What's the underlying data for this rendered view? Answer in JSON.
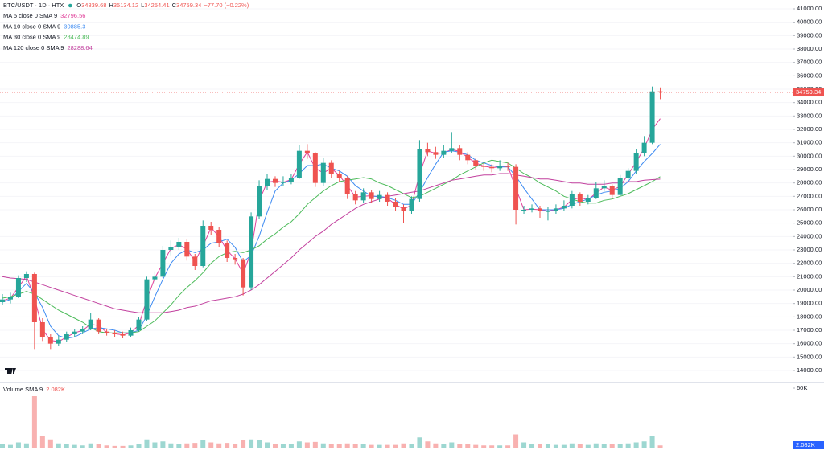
{
  "chart_data": {
    "type": "candlestick",
    "symbol": "BTC/USDT · 1D · HTX",
    "ohlc_prefixes": [
      "O",
      "H",
      "L",
      "C"
    ],
    "change": "−77.70 (−0.22%)",
    "up_color": "#26a69a",
    "down_color": "#ef5350",
    "grid": true,
    "ylim": [
      13280,
      41660
    ],
    "yticks": [
      {
        "value": 14000,
        "label": "14000.00"
      },
      {
        "value": 15000,
        "label": "15000.00"
      },
      {
        "value": 16000,
        "label": "16000.00"
      },
      {
        "value": 17000,
        "label": "17000.00"
      },
      {
        "value": 18000,
        "label": "18000.00"
      },
      {
        "value": 19000,
        "label": "19000.00"
      },
      {
        "value": 20000,
        "label": "20000.00"
      },
      {
        "value": 21000,
        "label": "21000.00"
      },
      {
        "value": 22000,
        "label": "22000.00"
      },
      {
        "value": 23000,
        "label": "23000.00"
      },
      {
        "value": 24000,
        "label": "24000.00"
      },
      {
        "value": 25000,
        "label": "25000.00"
      },
      {
        "value": 26000,
        "label": "26000.00"
      },
      {
        "value": 27000,
        "label": "27000.00"
      },
      {
        "value": 28000,
        "label": "28000.00"
      },
      {
        "value": 29000,
        "label": "29000.00"
      },
      {
        "value": 30000,
        "label": "30000.00"
      },
      {
        "value": 31000,
        "label": "31000.00"
      },
      {
        "value": 32000,
        "label": "32000.00"
      },
      {
        "value": 33000,
        "label": "33000.00"
      },
      {
        "value": 34000,
        "label": "34000.00"
      },
      {
        "value": 35000,
        "label": "35000.00"
      },
      {
        "value": 36000,
        "label": "36000.00"
      },
      {
        "value": 37000,
        "label": "37000.00"
      },
      {
        "value": 38000,
        "label": "38000.00"
      },
      {
        "value": 39000,
        "label": "39000.00"
      },
      {
        "value": 40000,
        "label": "40000.00"
      },
      {
        "value": 41000,
        "label": "41000.00"
      }
    ],
    "ohlc": [
      [
        19100,
        19700,
        18900,
        19300
      ],
      [
        19300,
        19800,
        19000,
        19500
      ],
      [
        19500,
        21100,
        19400,
        20900
      ],
      [
        20900,
        21400,
        20600,
        21200
      ],
      [
        21200,
        21300,
        15600,
        17600
      ],
      [
        17600,
        17900,
        16200,
        16500
      ],
      [
        16500,
        16700,
        15600,
        16000
      ],
      [
        16000,
        16600,
        15800,
        16300
      ],
      [
        16300,
        16900,
        16100,
        16700
      ],
      [
        16700,
        17100,
        16500,
        16900
      ],
      [
        16900,
        17300,
        16700,
        17100
      ],
      [
        17100,
        18300,
        17000,
        17800
      ],
      [
        17800,
        17900,
        16700,
        16900
      ],
      [
        16900,
        17100,
        16600,
        16800
      ],
      [
        16800,
        17000,
        16500,
        16700
      ],
      [
        16700,
        16900,
        16400,
        16600
      ],
      [
        16600,
        17200,
        16500,
        17000
      ],
      [
        17000,
        18000,
        16900,
        17800
      ],
      [
        17800,
        21000,
        17700,
        20800
      ],
      [
        20800,
        21400,
        20500,
        21000
      ],
      [
        21000,
        23300,
        20900,
        23000
      ],
      [
        23000,
        23700,
        22600,
        23200
      ],
      [
        23200,
        23900,
        23000,
        23600
      ],
      [
        23600,
        23800,
        22200,
        22500
      ],
      [
        22500,
        22700,
        21500,
        21800
      ],
      [
        21800,
        25200,
        21700,
        24800
      ],
      [
        24800,
        25100,
        24100,
        24500
      ],
      [
        24500,
        24700,
        23200,
        23500
      ],
      [
        23500,
        23700,
        22100,
        22400
      ],
      [
        22400,
        22700,
        21900,
        22300
      ],
      [
        22300,
        22400,
        19600,
        20200
      ],
      [
        20200,
        25800,
        20000,
        25500
      ],
      [
        25500,
        28200,
        25300,
        27800
      ],
      [
        27800,
        28700,
        27500,
        28300
      ],
      [
        28300,
        28500,
        27700,
        28000
      ],
      [
        28000,
        28500,
        27800,
        28100
      ],
      [
        28100,
        28700,
        27900,
        28400
      ],
      [
        28400,
        30800,
        28300,
        30400
      ],
      [
        30400,
        30900,
        29800,
        30200
      ],
      [
        30200,
        30300,
        27700,
        28000
      ],
      [
        28000,
        29900,
        27800,
        29500
      ],
      [
        29500,
        29700,
        28400,
        28700
      ],
      [
        28700,
        28900,
        28100,
        28400
      ],
      [
        28400,
        28500,
        26800,
        27200
      ],
      [
        27200,
        27400,
        26400,
        26700
      ],
      [
        26700,
        27600,
        26500,
        27300
      ],
      [
        27300,
        27500,
        26500,
        26800
      ],
      [
        26800,
        27400,
        26600,
        27100
      ],
      [
        27100,
        27300,
        26300,
        26600
      ],
      [
        26600,
        26900,
        25900,
        26200
      ],
      [
        26200,
        26400,
        25000,
        25900
      ],
      [
        25900,
        27000,
        25700,
        26800
      ],
      [
        26800,
        31200,
        26600,
        30500
      ],
      [
        30500,
        31000,
        30000,
        30300
      ],
      [
        30300,
        30700,
        29800,
        30100
      ],
      [
        30100,
        30800,
        29900,
        30400
      ],
      [
        30400,
        31800,
        30200,
        30600
      ],
      [
        30600,
        30800,
        29700,
        30100
      ],
      [
        30100,
        30300,
        29400,
        29700
      ],
      [
        29700,
        29900,
        29000,
        29300
      ],
      [
        29300,
        29500,
        28900,
        29200
      ],
      [
        29200,
        29400,
        28800,
        29100
      ],
      [
        29100,
        29700,
        28900,
        29300
      ],
      [
        29300,
        29500,
        28900,
        29200
      ],
      [
        29200,
        29400,
        24900,
        26000
      ],
      [
        26000,
        26300,
        25700,
        26000
      ],
      [
        26000,
        26400,
        25800,
        26100
      ],
      [
        26100,
        26300,
        25400,
        25900
      ],
      [
        25900,
        26200,
        25200,
        25900
      ],
      [
        25900,
        26400,
        25700,
        26100
      ],
      [
        26100,
        26700,
        25900,
        26300
      ],
      [
        26300,
        27400,
        26100,
        27200
      ],
      [
        27200,
        27300,
        26300,
        26600
      ],
      [
        26600,
        27100,
        26400,
        26900
      ],
      [
        26900,
        28100,
        26800,
        27600
      ],
      [
        27600,
        28200,
        27400,
        27800
      ],
      [
        27800,
        27900,
        26800,
        27100
      ],
      [
        27100,
        28600,
        27000,
        28400
      ],
      [
        28400,
        29100,
        28200,
        28900
      ],
      [
        28900,
        30500,
        28700,
        30200
      ],
      [
        30200,
        31500,
        30000,
        31000
      ],
      [
        31000,
        35200,
        30900,
        34837.04
      ],
      [
        34839.68,
        35134.12,
        34254.41,
        34759.34
      ]
    ],
    "series": [
      {
        "name": "MA 5 close 0 SMA 9",
        "color": "#e0409a",
        "values": [
          19200,
          19400,
          20200,
          21050,
          19400,
          17050,
          16250,
          16150,
          16500,
          16800,
          17000,
          17450,
          17350,
          16850,
          16750,
          16650,
          16800,
          17400,
          19300,
          20900,
          22000,
          23100,
          23400,
          23050,
          22150,
          23300,
          24650,
          24000,
          22950,
          22350,
          21250,
          22850,
          26650,
          28050,
          28150,
          28050,
          28250,
          29400,
          30300,
          29100,
          28750,
          29100,
          28550,
          27800,
          26950,
          27000,
          27050,
          26950,
          26850,
          26400,
          26050,
          26350,
          28650,
          30400,
          30200,
          30250,
          30500,
          30350,
          29900,
          29500,
          29250,
          29150,
          29200,
          29250,
          27600,
          26000,
          26050,
          26000,
          25900,
          26000,
          26200,
          26750,
          26900,
          26750,
          27250,
          27700,
          27450,
          27750,
          28650,
          29550,
          30600,
          32000,
          32796.56
        ]
      },
      {
        "name": "MA 10 close 0 SMA 9",
        "color": "#3d8bf2",
        "values": [
          19100,
          19300,
          19900,
          20500,
          19800,
          18700,
          17300,
          16600,
          16400,
          16500,
          16800,
          17100,
          17200,
          17100,
          17000,
          16800,
          16800,
          17000,
          18100,
          19500,
          20800,
          22000,
          22700,
          23000,
          22800,
          23000,
          23500,
          23600,
          23800,
          23200,
          22100,
          22600,
          24000,
          25800,
          27400,
          28000,
          28200,
          28700,
          29300,
          29300,
          29400,
          29100,
          28900,
          28500,
          27800,
          27400,
          27000,
          27000,
          26900,
          26700,
          26400,
          26400,
          27300,
          28400,
          29400,
          30300,
          30400,
          30300,
          30100,
          29700,
          29500,
          29300,
          29200,
          29200,
          28500,
          27600,
          26800,
          26000,
          26000,
          26000,
          26100,
          26400,
          26600,
          26800,
          27100,
          27300,
          27400,
          27600,
          28100,
          28900,
          29600,
          30200,
          30885.3
        ]
      },
      {
        "name": "MA 30 close 0 SMA 9",
        "color": "#4cbb5a",
        "values": [
          19400,
          19500,
          19700,
          19900,
          19700,
          19300,
          18900,
          18500,
          18200,
          17900,
          17600,
          17200,
          16900,
          16800,
          16800,
          16800,
          16800,
          16900,
          17300,
          17700,
          18300,
          18900,
          19600,
          20200,
          20700,
          21300,
          22000,
          22500,
          22800,
          22900,
          22800,
          23000,
          23300,
          23800,
          24200,
          24700,
          25100,
          25700,
          26400,
          26900,
          27400,
          27800,
          28100,
          28200,
          28300,
          28400,
          28300,
          28000,
          27800,
          27500,
          27200,
          26900,
          27000,
          27300,
          27600,
          27900,
          28200,
          28600,
          28900,
          29200,
          29500,
          29700,
          29600,
          29500,
          29100,
          28700,
          28400,
          28000,
          27700,
          27400,
          27000,
          26800,
          26600,
          26500,
          26500,
          26700,
          26800,
          27000,
          27200,
          27500,
          27800,
          28100,
          28474.89
        ]
      },
      {
        "name": "MA 120 close 0 SMA 9",
        "color": "#c2409e",
        "values": [
          21000,
          20900,
          20850,
          20800,
          20600,
          20400,
          20200,
          20000,
          19800,
          19600,
          19400,
          19200,
          19000,
          18800,
          18600,
          18500,
          18400,
          18300,
          18300,
          18300,
          18300,
          18400,
          18500,
          18700,
          18800,
          19000,
          19200,
          19300,
          19400,
          19500,
          19700,
          20000,
          20400,
          20900,
          21400,
          21900,
          22400,
          23000,
          23500,
          24000,
          24400,
          24900,
          25300,
          25700,
          26100,
          26400,
          26600,
          26800,
          27000,
          27100,
          27200,
          27300,
          27400,
          27600,
          27800,
          28000,
          28200,
          28300,
          28400,
          28500,
          28600,
          28600,
          28700,
          28700,
          28600,
          28500,
          28400,
          28300,
          28300,
          28200,
          28100,
          28000,
          28000,
          27900,
          27900,
          27900,
          28000,
          28000,
          28100,
          28100,
          28200,
          28250,
          28288.64
        ]
      }
    ],
    "volume": {
      "title": "Volume SMA 9",
      "sma_label": "2.082K",
      "ylim": [
        0,
        64800
      ],
      "yticks": [
        {
          "value": 60000,
          "label": "60K"
        }
      ],
      "values": [
        4000,
        3500,
        6000,
        5000,
        52000,
        12000,
        9000,
        5000,
        4000,
        3500,
        3000,
        5000,
        4500,
        3000,
        2500,
        2500,
        3000,
        4000,
        9000,
        6000,
        7000,
        5000,
        4500,
        5000,
        5500,
        8000,
        6000,
        5000,
        5500,
        4500,
        8000,
        9000,
        8000,
        6000,
        4500,
        4000,
        4000,
        7000,
        6000,
        6500,
        5000,
        4500,
        4000,
        5000,
        4500,
        4000,
        3500,
        3500,
        3500,
        3500,
        5000,
        4500,
        11000,
        7000,
        5000,
        4500,
        6000,
        4500,
        4000,
        3500,
        3000,
        3000,
        3000,
        3000,
        14000,
        6000,
        4000,
        4000,
        4500,
        3500,
        3500,
        5000,
        4000,
        3500,
        5000,
        4500,
        4000,
        4500,
        5000,
        6000,
        7000,
        12000,
        3000
      ]
    }
  }
}
